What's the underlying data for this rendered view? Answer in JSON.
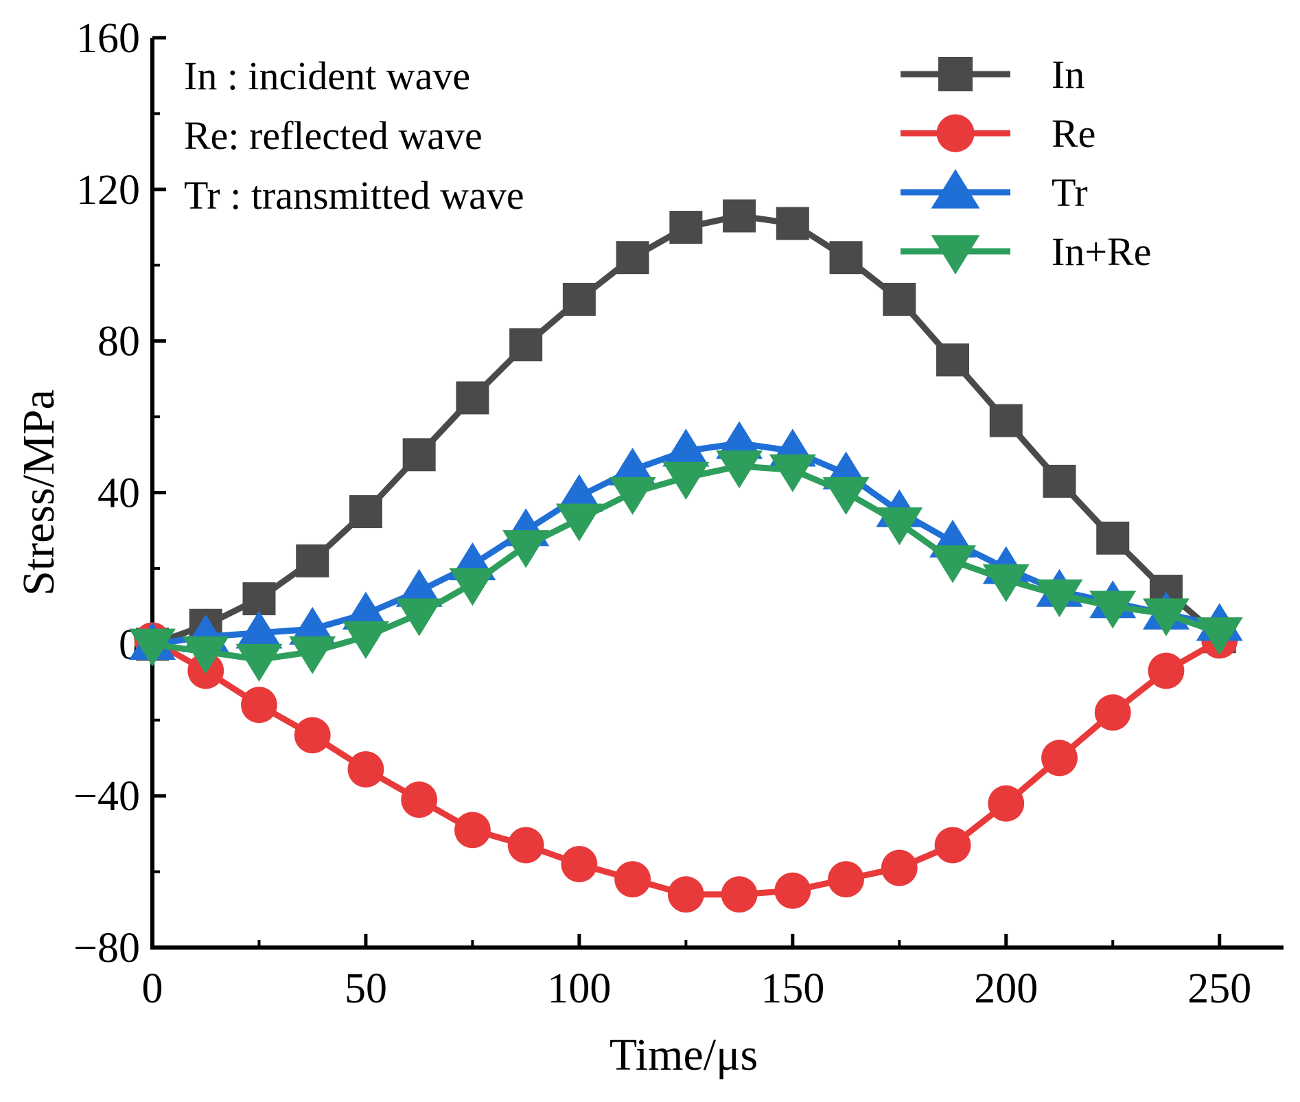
{
  "chart_data": {
    "type": "line",
    "title": "",
    "xlabel": "Time/μs",
    "ylabel": "Stress/MPa",
    "xlim": [
      0,
      265
    ],
    "ylim": [
      -80,
      160
    ],
    "xticks": [
      0,
      50,
      100,
      150,
      200,
      250
    ],
    "xtick_labels": [
      "0",
      "50",
      "100",
      "150",
      "200",
      "250"
    ],
    "yticks": [
      -80,
      -40,
      0,
      40,
      80,
      120,
      160
    ],
    "ytick_labels": [
      "−80",
      "−40",
      "0",
      "40",
      "80",
      "120",
      "160"
    ],
    "grid": false,
    "legend_position": "top-right",
    "annotations": [
      "In : incident wave",
      "Re: reflected wave",
      "Tr : transmitted wave"
    ],
    "x": [
      0,
      12.5,
      25,
      37.5,
      50,
      62.5,
      75,
      87.5,
      100,
      112.5,
      125,
      137.5,
      150,
      162.5,
      175,
      187.5,
      200,
      212.5,
      225,
      237.5,
      250
    ],
    "series": [
      {
        "name": "In",
        "marker": "square",
        "color": "#4a4a4a",
        "values": [
          0,
          5,
          12,
          22,
          35,
          50,
          65,
          79,
          91,
          102,
          110,
          113,
          111,
          102,
          91,
          75,
          59,
          43,
          28,
          14,
          2
        ]
      },
      {
        "name": "Re",
        "marker": "circle",
        "color": "#e83a3a",
        "values": [
          1,
          -7,
          -16,
          -24,
          -33,
          -41,
          -49,
          -53,
          -58,
          -62,
          -66,
          -66,
          -65,
          -62,
          -59,
          -53,
          -42,
          -30,
          -18,
          -7,
          1
        ]
      },
      {
        "name": "Tr",
        "marker": "triangle-up",
        "color": "#1f6fd6",
        "values": [
          0,
          2,
          3,
          4,
          8,
          14,
          21,
          30,
          39,
          46,
          51,
          53,
          51,
          45,
          35,
          27,
          20,
          14,
          11,
          8,
          5
        ]
      },
      {
        "name": "In+Re",
        "marker": "triangle-down",
        "color": "#2e9e5c",
        "values": [
          0,
          -2,
          -4,
          -2,
          2,
          8,
          16,
          26,
          33,
          40,
          44,
          47,
          46,
          40,
          32,
          22,
          17,
          13,
          10,
          8,
          3
        ]
      }
    ]
  }
}
